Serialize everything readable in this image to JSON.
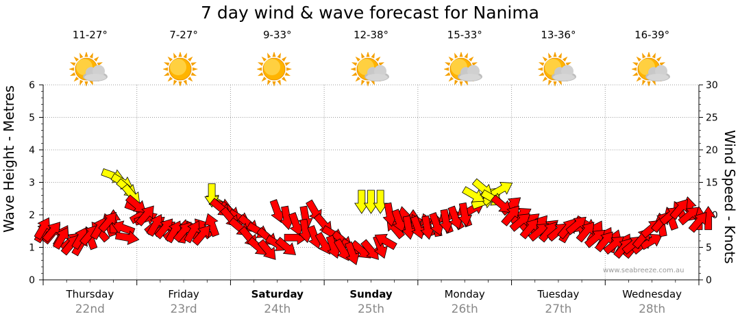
{
  "title": "7 day wind & wave forecast for Nanima",
  "credit": "www.seabreeze.com.au",
  "left_axis_label": "Wave Height - Metres",
  "right_axis_label": "Wind Speed - Knots",
  "days": [
    {
      "name": "Thursday",
      "date": "22nd",
      "temp": "11-27°",
      "icon": "sun-cloud-icon",
      "bold": false
    },
    {
      "name": "Friday",
      "date": "23rd",
      "temp": "7-27°",
      "icon": "sun-icon",
      "bold": false
    },
    {
      "name": "Saturday",
      "date": "24th",
      "temp": "9-33°",
      "icon": "sun-icon",
      "bold": true
    },
    {
      "name": "Sunday",
      "date": "25th",
      "temp": "12-38°",
      "icon": "sun-cloud-icon",
      "bold": true
    },
    {
      "name": "Monday",
      "date": "26th",
      "temp": "15-33°",
      "icon": "sun-cloud-icon",
      "bold": false
    },
    {
      "name": "Tuesday",
      "date": "27th",
      "temp": "13-36°",
      "icon": "sun-cloud-icon",
      "bold": false
    },
    {
      "name": "Wednesday",
      "date": "28th",
      "temp": "16-39°",
      "icon": "sun-cloud-icon",
      "bold": false
    }
  ],
  "colors": {
    "wind_strong": "#ff0000",
    "wind_light": "#ffff00",
    "grid": "#999999"
  },
  "chart_data": {
    "type": "scatter",
    "title": "7 day wind & wave forecast for Nanima",
    "ylabel_left": "Wave Height - Metres",
    "ylabel_right": "Wind Speed - Knots",
    "ylim_left": [
      0,
      6
    ],
    "ylim_right": [
      0,
      30
    ],
    "yticks_left": [
      "0",
      "1",
      "2",
      "3",
      "4",
      "5",
      "6"
    ],
    "yticks_right": [
      "0",
      "5",
      "10",
      "15",
      "20",
      "25",
      "30"
    ],
    "grid": true,
    "x_unit": "day index from Thursday 00:00",
    "series": [
      {
        "name": "Wind Speed",
        "axis": "right",
        "points": [
          {
            "x": 0.0,
            "y": 7.5,
            "dir": 300
          },
          {
            "x": 0.1,
            "y": 7.2,
            "dir": 310
          },
          {
            "x": 0.2,
            "y": 6.8,
            "dir": 300
          },
          {
            "x": 0.3,
            "y": 6.0,
            "dir": 320
          },
          {
            "x": 0.4,
            "y": 5.5,
            "dir": 300
          },
          {
            "x": 0.5,
            "y": 6.5,
            "dir": 250
          },
          {
            "x": 0.6,
            "y": 7.5,
            "dir": 230
          },
          {
            "x": 0.7,
            "y": 8.5,
            "dir": 250
          },
          {
            "x": 0.75,
            "y": 9.0,
            "dir": 270
          },
          {
            "x": 0.85,
            "y": 8.0,
            "dir": 200
          },
          {
            "x": 0.9,
            "y": 6.5,
            "dir": 10
          },
          {
            "x": 1.0,
            "y": 11.0,
            "dir": 20
          },
          {
            "x": 1.05,
            "y": 10.0,
            "dir": 330
          },
          {
            "x": 1.1,
            "y": 9.5,
            "dir": 340
          },
          {
            "x": 1.2,
            "y": 8.5,
            "dir": 320
          },
          {
            "x": 1.3,
            "y": 8.0,
            "dir": 330
          },
          {
            "x": 1.4,
            "y": 7.5,
            "dir": 320
          },
          {
            "x": 1.5,
            "y": 7.5,
            "dir": 280
          },
          {
            "x": 1.6,
            "y": 7.5,
            "dir": 240
          },
          {
            "x": 1.7,
            "y": 8.0,
            "dir": 230
          },
          {
            "x": 1.8,
            "y": 8.5,
            "dir": 250
          },
          {
            "x": 1.85,
            "y": 12.0,
            "dir": 210
          },
          {
            "x": 1.9,
            "y": 11.5,
            "dir": 20
          },
          {
            "x": 2.0,
            "y": 10.5,
            "dir": 40
          },
          {
            "x": 2.1,
            "y": 9.5,
            "dir": 30
          },
          {
            "x": 2.2,
            "y": 8.5,
            "dir": 40
          },
          {
            "x": 2.3,
            "y": 7.5,
            "dir": 30
          },
          {
            "x": 2.4,
            "y": 6.5,
            "dir": 40
          },
          {
            "x": 2.5,
            "y": 5.5,
            "dir": 30
          },
          {
            "x": 2.6,
            "y": 5.0,
            "dir": 40
          },
          {
            "x": 2.7,
            "y": 6.5,
            "dir": 0
          },
          {
            "x": 2.8,
            "y": 9.5,
            "dir": 80
          },
          {
            "x": 2.9,
            "y": 10.5,
            "dir": 60
          },
          {
            "x": 3.0,
            "y": 8.5,
            "dir": 50
          },
          {
            "x": 3.1,
            "y": 7.0,
            "dir": 30
          },
          {
            "x": 3.2,
            "y": 6.0,
            "dir": 40
          },
          {
            "x": 3.3,
            "y": 5.0,
            "dir": 30
          },
          {
            "x": 3.4,
            "y": 4.5,
            "dir": 40
          },
          {
            "x": 3.5,
            "y": 4.5,
            "dir": 50
          },
          {
            "x": 3.6,
            "y": 5.0,
            "dir": 70
          },
          {
            "x": 3.65,
            "y": 6.0,
            "dir": 210
          },
          {
            "x": 3.75,
            "y": 8.0,
            "dir": 230
          },
          {
            "x": 3.85,
            "y": 9.5,
            "dir": 260
          },
          {
            "x": 3.95,
            "y": 9.0,
            "dir": 270
          },
          {
            "x": 4.0,
            "y": 8.5,
            "dir": 240
          },
          {
            "x": 4.1,
            "y": 8.5,
            "dir": 250
          },
          {
            "x": 4.2,
            "y": 8.5,
            "dir": 260
          },
          {
            "x": 4.3,
            "y": 9.0,
            "dir": 250
          },
          {
            "x": 4.4,
            "y": 9.5,
            "dir": 240
          },
          {
            "x": 4.5,
            "y": 10.0,
            "dir": 250
          },
          {
            "x": 4.6,
            "y": 11.0,
            "dir": 330
          },
          {
            "x": 4.7,
            "y": 12.0,
            "dir": 340
          },
          {
            "x": 4.8,
            "y": 13.0,
            "dir": 320
          },
          {
            "x": 4.9,
            "y": 14.0,
            "dir": 330
          },
          {
            "x": 5.0,
            "y": 11.5,
            "dir": 320
          },
          {
            "x": 5.1,
            "y": 10.0,
            "dir": 330
          },
          {
            "x": 5.2,
            "y": 9.0,
            "dir": 320
          },
          {
            "x": 5.3,
            "y": 8.5,
            "dir": 310
          },
          {
            "x": 5.4,
            "y": 8.0,
            "dir": 320
          },
          {
            "x": 5.5,
            "y": 7.5,
            "dir": 330
          },
          {
            "x": 5.6,
            "y": 7.5,
            "dir": 300
          },
          {
            "x": 5.7,
            "y": 8.0,
            "dir": 350
          },
          {
            "x": 5.8,
            "y": 8.5,
            "dir": 30
          },
          {
            "x": 5.9,
            "y": 7.5,
            "dir": 300
          },
          {
            "x": 6.0,
            "y": 6.5,
            "dir": 300
          },
          {
            "x": 6.1,
            "y": 6.0,
            "dir": 290
          },
          {
            "x": 6.2,
            "y": 5.5,
            "dir": 300
          },
          {
            "x": 6.3,
            "y": 5.0,
            "dir": 310
          },
          {
            "x": 6.4,
            "y": 5.5,
            "dir": 320
          },
          {
            "x": 6.5,
            "y": 6.0,
            "dir": 330
          },
          {
            "x": 6.6,
            "y": 8.5,
            "dir": 260
          },
          {
            "x": 6.7,
            "y": 9.5,
            "dir": 250
          },
          {
            "x": 6.8,
            "y": 10.5,
            "dir": 240
          },
          {
            "x": 6.9,
            "y": 11.0,
            "dir": 260
          },
          {
            "x": 7.0,
            "y": 9.5,
            "dir": 270
          },
          {
            "x": 7.1,
            "y": 9.5,
            "dir": 270
          }
        ]
      },
      {
        "name": "Wave Height",
        "axis": "left",
        "points": [
          {
            "x": 0.0,
            "y": 1.6,
            "dir": 300
          },
          {
            "x": 0.1,
            "y": 1.5,
            "dir": 310
          },
          {
            "x": 0.2,
            "y": 1.3,
            "dir": 300
          },
          {
            "x": 0.3,
            "y": 1.1,
            "dir": 310
          },
          {
            "x": 0.4,
            "y": 1.3,
            "dir": 300
          },
          {
            "x": 0.5,
            "y": 1.4,
            "dir": 310
          },
          {
            "x": 0.6,
            "y": 1.6,
            "dir": 300
          },
          {
            "x": 0.7,
            "y": 1.8,
            "dir": 310
          },
          {
            "x": 0.75,
            "y": 3.2,
            "dir": 20
          },
          {
            "x": 0.85,
            "y": 3.0,
            "dir": 30
          },
          {
            "x": 0.9,
            "y": 2.8,
            "dir": 40
          },
          {
            "x": 0.95,
            "y": 2.6,
            "dir": 50
          },
          {
            "x": 1.0,
            "y": 2.3,
            "dir": 40
          },
          {
            "x": 1.1,
            "y": 2.0,
            "dir": 310
          },
          {
            "x": 1.2,
            "y": 1.7,
            "dir": 300
          },
          {
            "x": 1.3,
            "y": 1.6,
            "dir": 310
          },
          {
            "x": 1.4,
            "y": 1.5,
            "dir": 300
          },
          {
            "x": 1.5,
            "y": 1.5,
            "dir": 310
          },
          {
            "x": 1.6,
            "y": 1.5,
            "dir": 300
          },
          {
            "x": 1.7,
            "y": 1.4,
            "dir": 310
          },
          {
            "x": 1.8,
            "y": 2.6,
            "dir": 90
          },
          {
            "x": 1.9,
            "y": 2.2,
            "dir": 40
          },
          {
            "x": 2.0,
            "y": 1.9,
            "dir": 50
          },
          {
            "x": 2.1,
            "y": 1.6,
            "dir": 40
          },
          {
            "x": 2.2,
            "y": 1.3,
            "dir": 50
          },
          {
            "x": 2.3,
            "y": 1.0,
            "dir": 40
          },
          {
            "x": 2.4,
            "y": 0.9,
            "dir": 50
          },
          {
            "x": 2.5,
            "y": 2.1,
            "dir": 70
          },
          {
            "x": 2.6,
            "y": 1.9,
            "dir": 80
          },
          {
            "x": 2.7,
            "y": 1.7,
            "dir": 70
          },
          {
            "x": 2.8,
            "y": 1.5,
            "dir": 80
          },
          {
            "x": 2.9,
            "y": 1.3,
            "dir": 70
          },
          {
            "x": 3.0,
            "y": 1.1,
            "dir": 60
          },
          {
            "x": 3.1,
            "y": 1.0,
            "dir": 70
          },
          {
            "x": 3.2,
            "y": 0.9,
            "dir": 60
          },
          {
            "x": 3.3,
            "y": 0.8,
            "dir": 70
          },
          {
            "x": 3.4,
            "y": 2.4,
            "dir": 90
          },
          {
            "x": 3.5,
            "y": 2.4,
            "dir": 90
          },
          {
            "x": 3.6,
            "y": 2.4,
            "dir": 90
          },
          {
            "x": 3.7,
            "y": 2.0,
            "dir": 80
          },
          {
            "x": 3.8,
            "y": 1.8,
            "dir": 70
          },
          {
            "x": 3.9,
            "y": 1.6,
            "dir": 80
          },
          {
            "x": 4.0,
            "y": 1.6,
            "dir": 70
          },
          {
            "x": 4.1,
            "y": 1.6,
            "dir": 80
          },
          {
            "x": 4.2,
            "y": 1.7,
            "dir": 70
          },
          {
            "x": 4.3,
            "y": 1.8,
            "dir": 80
          },
          {
            "x": 4.4,
            "y": 1.9,
            "dir": 70
          },
          {
            "x": 4.5,
            "y": 2.0,
            "dir": 80
          },
          {
            "x": 4.6,
            "y": 2.6,
            "dir": 30
          },
          {
            "x": 4.7,
            "y": 2.8,
            "dir": 40
          },
          {
            "x": 4.8,
            "y": 2.5,
            "dir": 30
          },
          {
            "x": 4.9,
            "y": 2.3,
            "dir": 40
          },
          {
            "x": 5.0,
            "y": 2.0,
            "dir": 310
          },
          {
            "x": 5.1,
            "y": 1.8,
            "dir": 320
          },
          {
            "x": 5.2,
            "y": 1.6,
            "dir": 310
          },
          {
            "x": 5.3,
            "y": 1.5,
            "dir": 320
          },
          {
            "x": 5.4,
            "y": 1.5,
            "dir": 310
          },
          {
            "x": 5.5,
            "y": 1.5,
            "dir": 320
          },
          {
            "x": 5.6,
            "y": 1.6,
            "dir": 310
          },
          {
            "x": 5.7,
            "y": 1.7,
            "dir": 320
          },
          {
            "x": 5.8,
            "y": 1.5,
            "dir": 310
          },
          {
            "x": 5.9,
            "y": 1.3,
            "dir": 320
          },
          {
            "x": 6.0,
            "y": 1.2,
            "dir": 310
          },
          {
            "x": 6.1,
            "y": 1.1,
            "dir": 320
          },
          {
            "x": 6.2,
            "y": 1.0,
            "dir": 310
          },
          {
            "x": 6.3,
            "y": 1.1,
            "dir": 320
          },
          {
            "x": 6.4,
            "y": 1.3,
            "dir": 310
          },
          {
            "x": 6.5,
            "y": 1.6,
            "dir": 320
          },
          {
            "x": 6.6,
            "y": 1.8,
            "dir": 310
          },
          {
            "x": 6.7,
            "y": 2.0,
            "dir": 320
          },
          {
            "x": 6.8,
            "y": 2.2,
            "dir": 310
          },
          {
            "x": 6.9,
            "y": 2.0,
            "dir": 320
          },
          {
            "x": 7.0,
            "y": 1.8,
            "dir": 310
          }
        ]
      }
    ]
  }
}
